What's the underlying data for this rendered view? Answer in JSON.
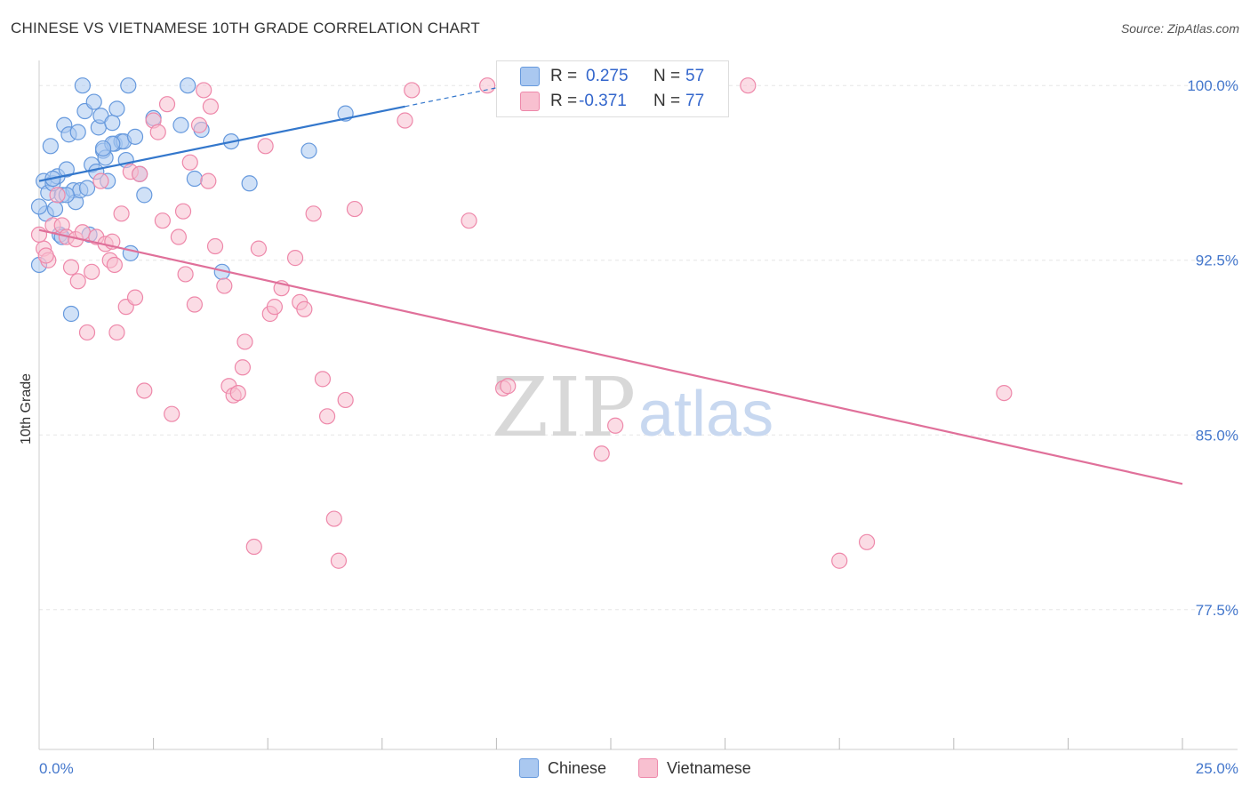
{
  "title": "CHINESE VS VIETNAMESE 10TH GRADE CORRELATION CHART",
  "source": "Source: ZipAtlas.com",
  "watermark": {
    "left": "ZIP",
    "right": "atlas"
  },
  "legend_box": {
    "rows": [
      {
        "r_label": "R =",
        "r_value": "0.275",
        "n_label": "N =",
        "n_value": "57",
        "color": "#aac8f0",
        "border": "#6699dd"
      },
      {
        "r_label": "R =",
        "r_value": "-0.371",
        "n_label": "N =",
        "n_value": "77",
        "color": "#f8c0d0",
        "border": "#ee88aa"
      }
    ]
  },
  "bottom_legend": [
    {
      "label": "Chinese",
      "color": "#aac8f0",
      "border": "#6699dd"
    },
    {
      "label": "Vietnamese",
      "color": "#f8c0d0",
      "border": "#ee88aa"
    }
  ],
  "chart_data": {
    "type": "scatter",
    "title": "CHINESE VS VIETNAMESE 10TH GRADE CORRELATION CHART",
    "xlabel": "",
    "ylabel": "10th Grade",
    "xlim": [
      0,
      25
    ],
    "ylim": [
      71.5,
      101
    ],
    "x_tick_labels": [
      "0.0%",
      "25.0%"
    ],
    "y_ticks": [
      100.0,
      92.5,
      85.0,
      77.5
    ],
    "y_tick_labels": [
      "100.0%",
      "92.5%",
      "85.0%",
      "77.5%"
    ],
    "grid": true,
    "legend_position": "top-center",
    "series": [
      {
        "name": "Chinese",
        "color": "#6699dd",
        "fill": "#aac8f0",
        "trend": {
          "x": [
            0,
            8
          ],
          "y": [
            95.9,
            99.1
          ],
          "dashed_to": [
            10,
            99.9
          ]
        },
        "points": [
          [
            0.0,
            92.3
          ],
          [
            0.1,
            95.9
          ],
          [
            0.15,
            94.5
          ],
          [
            0.2,
            95.4
          ],
          [
            0.25,
            97.4
          ],
          [
            0.3,
            95.8
          ],
          [
            0.35,
            94.7
          ],
          [
            0.4,
            96.1
          ],
          [
            0.45,
            93.6
          ],
          [
            0.5,
            95.3
          ],
          [
            0.55,
            98.3
          ],
          [
            0.6,
            96.4
          ],
          [
            0.65,
            97.9
          ],
          [
            0.7,
            90.2
          ],
          [
            0.75,
            95.5
          ],
          [
            0.8,
            95.0
          ],
          [
            0.85,
            98.0
          ],
          [
            0.9,
            95.5
          ],
          [
            0.95,
            100.0
          ],
          [
            1.0,
            98.9
          ],
          [
            1.05,
            95.6
          ],
          [
            1.1,
            93.6
          ],
          [
            1.15,
            96.6
          ],
          [
            1.2,
            99.3
          ],
          [
            1.25,
            96.3
          ],
          [
            1.3,
            98.2
          ],
          [
            1.35,
            98.7
          ],
          [
            1.4,
            97.2
          ],
          [
            1.45,
            96.9
          ],
          [
            1.5,
            95.9
          ],
          [
            1.6,
            98.4
          ],
          [
            1.65,
            97.5
          ],
          [
            1.7,
            99.0
          ],
          [
            1.8,
            97.6
          ],
          [
            1.85,
            97.6
          ],
          [
            1.9,
            96.8
          ],
          [
            1.95,
            100.0
          ],
          [
            2.0,
            92.8
          ],
          [
            2.1,
            97.8
          ],
          [
            2.2,
            96.2
          ],
          [
            2.3,
            95.3
          ],
          [
            2.5,
            98.6
          ],
          [
            3.1,
            98.3
          ],
          [
            3.25,
            100.0
          ],
          [
            3.4,
            96.0
          ],
          [
            3.55,
            98.1
          ],
          [
            4.0,
            92.0
          ],
          [
            4.2,
            97.6
          ],
          [
            4.6,
            95.8
          ],
          [
            5.9,
            97.2
          ],
          [
            6.7,
            98.8
          ],
          [
            1.6,
            97.5
          ],
          [
            0.6,
            95.3
          ],
          [
            0.3,
            96.0
          ],
          [
            0.5,
            93.5
          ],
          [
            0.0,
            94.8
          ],
          [
            1.4,
            97.3
          ]
        ]
      },
      {
        "name": "Vietnamese",
        "color": "#ee88aa",
        "fill": "#f8c0d0",
        "trend": {
          "x": [
            0,
            25
          ],
          "y": [
            93.8,
            82.9
          ]
        },
        "points": [
          [
            0.1,
            93.0
          ],
          [
            0.2,
            92.5
          ],
          [
            0.3,
            94.0
          ],
          [
            0.4,
            95.3
          ],
          [
            0.5,
            94.0
          ],
          [
            0.6,
            93.5
          ],
          [
            0.7,
            92.2
          ],
          [
            0.8,
            93.4
          ],
          [
            0.85,
            91.6
          ],
          [
            0.95,
            93.7
          ],
          [
            1.05,
            89.4
          ],
          [
            1.15,
            92.0
          ],
          [
            1.25,
            93.5
          ],
          [
            1.35,
            95.9
          ],
          [
            1.45,
            93.2
          ],
          [
            1.55,
            92.5
          ],
          [
            1.6,
            93.3
          ],
          [
            1.65,
            92.3
          ],
          [
            1.7,
            89.4
          ],
          [
            1.8,
            94.5
          ],
          [
            1.9,
            90.5
          ],
          [
            2.0,
            96.3
          ],
          [
            2.1,
            90.9
          ],
          [
            2.2,
            96.2
          ],
          [
            2.3,
            86.9
          ],
          [
            2.5,
            98.5
          ],
          [
            2.6,
            98.0
          ],
          [
            2.7,
            94.2
          ],
          [
            2.8,
            99.2
          ],
          [
            2.9,
            85.9
          ],
          [
            3.05,
            93.5
          ],
          [
            3.15,
            94.6
          ],
          [
            3.2,
            91.9
          ],
          [
            3.3,
            96.7
          ],
          [
            3.4,
            90.6
          ],
          [
            3.5,
            98.3
          ],
          [
            3.6,
            99.8
          ],
          [
            3.7,
            95.9
          ],
          [
            3.75,
            99.1
          ],
          [
            3.85,
            93.1
          ],
          [
            4.05,
            91.4
          ],
          [
            4.15,
            87.1
          ],
          [
            4.25,
            86.7
          ],
          [
            4.35,
            86.8
          ],
          [
            4.45,
            87.9
          ],
          [
            4.5,
            89.0
          ],
          [
            4.7,
            80.2
          ],
          [
            4.8,
            93.0
          ],
          [
            4.95,
            97.4
          ],
          [
            5.05,
            90.2
          ],
          [
            5.15,
            90.5
          ],
          [
            5.3,
            91.3
          ],
          [
            5.6,
            92.6
          ],
          [
            5.7,
            90.7
          ],
          [
            5.8,
            90.4
          ],
          [
            6.0,
            94.5
          ],
          [
            6.2,
            87.4
          ],
          [
            6.3,
            85.8
          ],
          [
            6.45,
            81.4
          ],
          [
            6.55,
            79.6
          ],
          [
            6.7,
            86.5
          ],
          [
            6.9,
            94.7
          ],
          [
            8.0,
            98.5
          ],
          [
            8.15,
            99.8
          ],
          [
            9.4,
            94.2
          ],
          [
            9.8,
            100.0
          ],
          [
            10.15,
            87.0
          ],
          [
            10.25,
            87.1
          ],
          [
            10.2,
            100.0
          ],
          [
            12.3,
            84.2
          ],
          [
            12.6,
            85.4
          ],
          [
            15.5,
            100.0
          ],
          [
            17.5,
            79.6
          ],
          [
            18.1,
            80.4
          ],
          [
            21.1,
            86.8
          ],
          [
            0.15,
            92.7
          ],
          [
            0.0,
            93.6
          ]
        ]
      }
    ]
  }
}
